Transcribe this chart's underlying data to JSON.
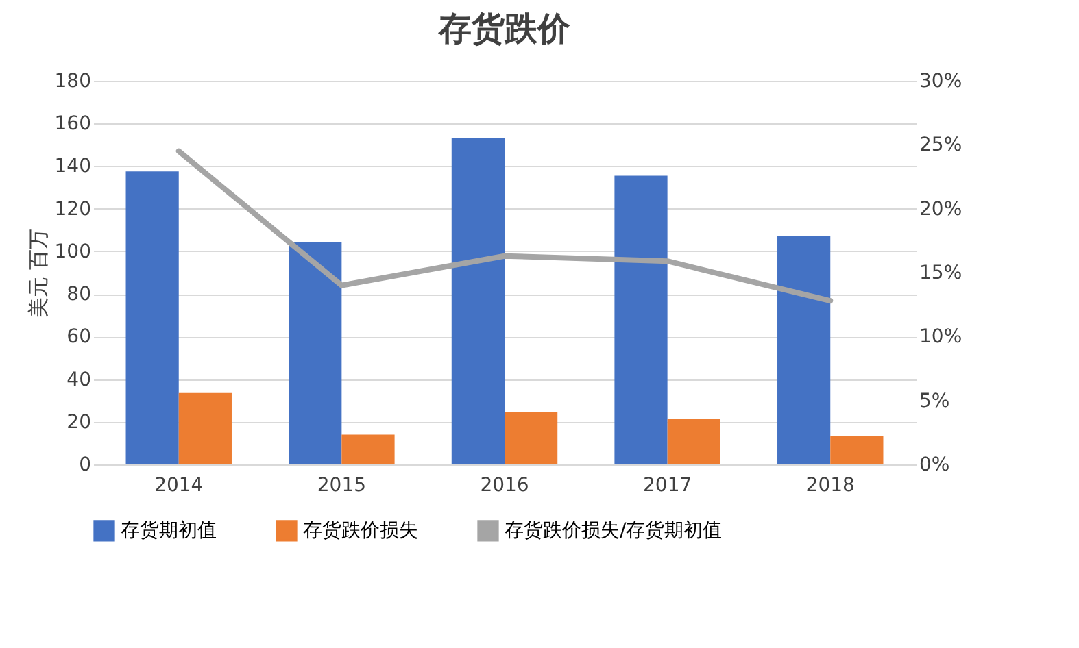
{
  "chart_data": {
    "type": "bar",
    "title": "存货跌价",
    "ylabel": "美元 百万",
    "categories": [
      "2014",
      "2015",
      "2016",
      "2017",
      "2018"
    ],
    "series": [
      {
        "name": "存货期初值",
        "color": "#4472c4",
        "values": [
          137.5,
          104.5,
          153,
          135.5,
          107
        ]
      },
      {
        "name": "存货跌价损失",
        "color": "#ed7d31",
        "values": [
          33.5,
          14,
          24.5,
          21.5,
          13.5
        ]
      },
      {
        "name": "存货跌价损失/存货期初值",
        "type": "line",
        "axis": "y2",
        "color": "#a5a5a5",
        "values": [
          24.5,
          14,
          16.3,
          15.9,
          12.8
        ]
      }
    ],
    "ylim": [
      0,
      180
    ],
    "yticks": [
      0,
      20,
      40,
      60,
      80,
      100,
      120,
      140,
      160,
      180
    ],
    "y2lim": [
      0,
      30
    ],
    "y2ticks": [
      {
        "value": 0,
        "label": "0%"
      },
      {
        "value": 5,
        "label": "5%"
      },
      {
        "value": 10,
        "label": "10%"
      },
      {
        "value": 15,
        "label": "15%"
      },
      {
        "value": 20,
        "label": "20%"
      },
      {
        "value": 25,
        "label": "25%"
      },
      {
        "value": 30,
        "label": "30%"
      }
    ],
    "grid": "y",
    "legend": "bottom",
    "marker": "none",
    "line_style": "solid"
  }
}
